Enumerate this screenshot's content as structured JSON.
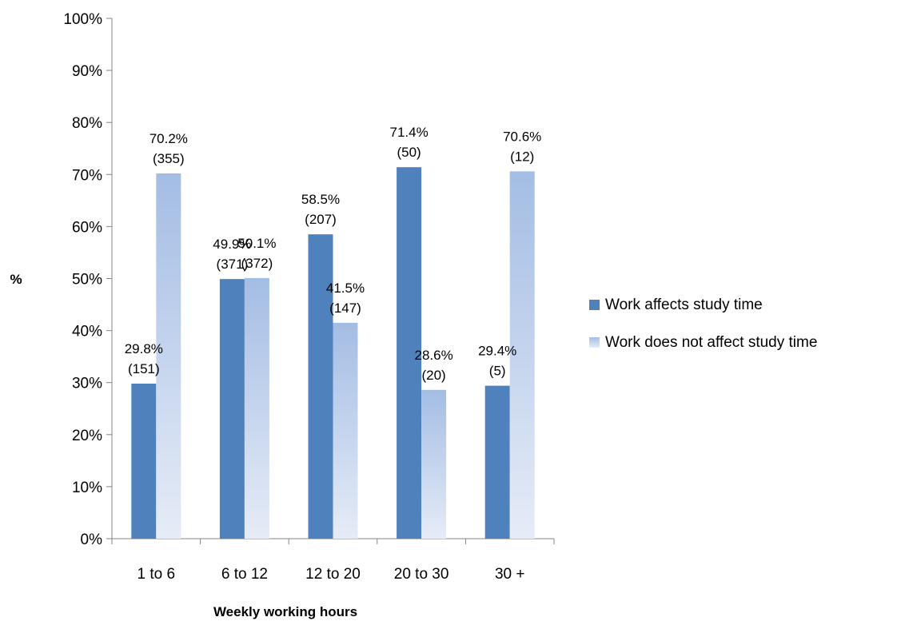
{
  "chart_data": {
    "type": "bar",
    "title": "",
    "xlabel": "Weekly working hours",
    "ylabel": "%",
    "ylim": [
      0,
      100
    ],
    "yticks": [
      "0%",
      "10%",
      "20%",
      "30%",
      "40%",
      "50%",
      "60%",
      "70%",
      "80%",
      "90%",
      "100%"
    ],
    "categories": [
      "1 to 6",
      "6 to 12",
      "12 to 20",
      "20 to 30",
      "30 +"
    ],
    "series": [
      {
        "name": "Work affects study time",
        "color": "#4f81bd",
        "values": [
          29.8,
          49.9,
          58.5,
          71.4,
          29.4
        ],
        "labels": [
          "29.8%",
          "49.9%",
          "58.5%",
          "71.4%",
          "29.4%"
        ],
        "counts": [
          "(151)",
          "(371)",
          "(207)",
          "(50)",
          "(5)"
        ]
      },
      {
        "name": "Work does not affect study time",
        "color": "#a4bde4",
        "values": [
          70.2,
          50.1,
          41.5,
          28.6,
          70.6
        ],
        "labels": [
          "70.2%",
          "50.1%",
          "41.5%",
          "28.6%",
          "70.6%"
        ],
        "counts": [
          "(355)",
          "(372)",
          "(147)",
          "(20)",
          "(12)"
        ]
      }
    ],
    "grid": false,
    "legend": "right"
  }
}
